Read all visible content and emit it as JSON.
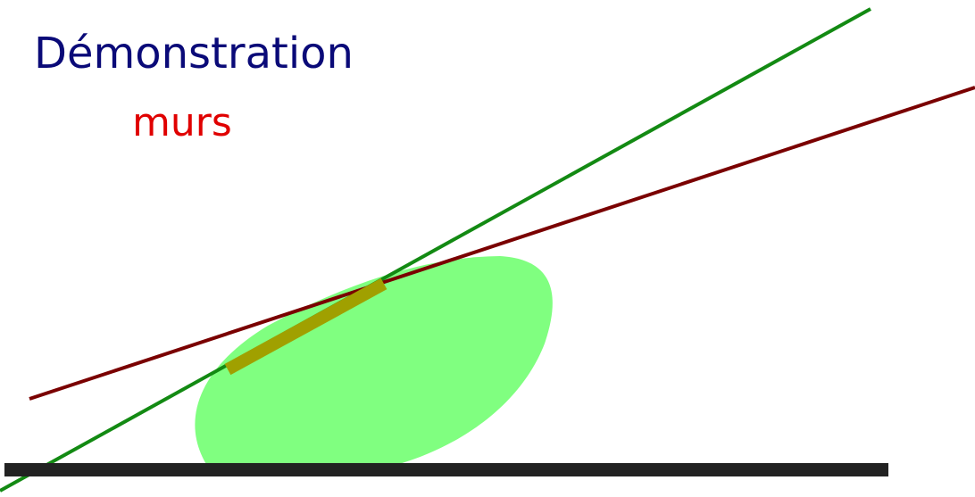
{
  "title": "Démonstration",
  "subtitle": "murs",
  "bottom_label": "",
  "colors": {
    "title": "#0a0a78",
    "subtitle": "#e00000",
    "bottom_label": "#138a13",
    "blob": "#80ff80",
    "green_line": "#138a13",
    "red_line": "#7a0000",
    "contact_segment": "#a0a000",
    "floor": "#222222"
  }
}
